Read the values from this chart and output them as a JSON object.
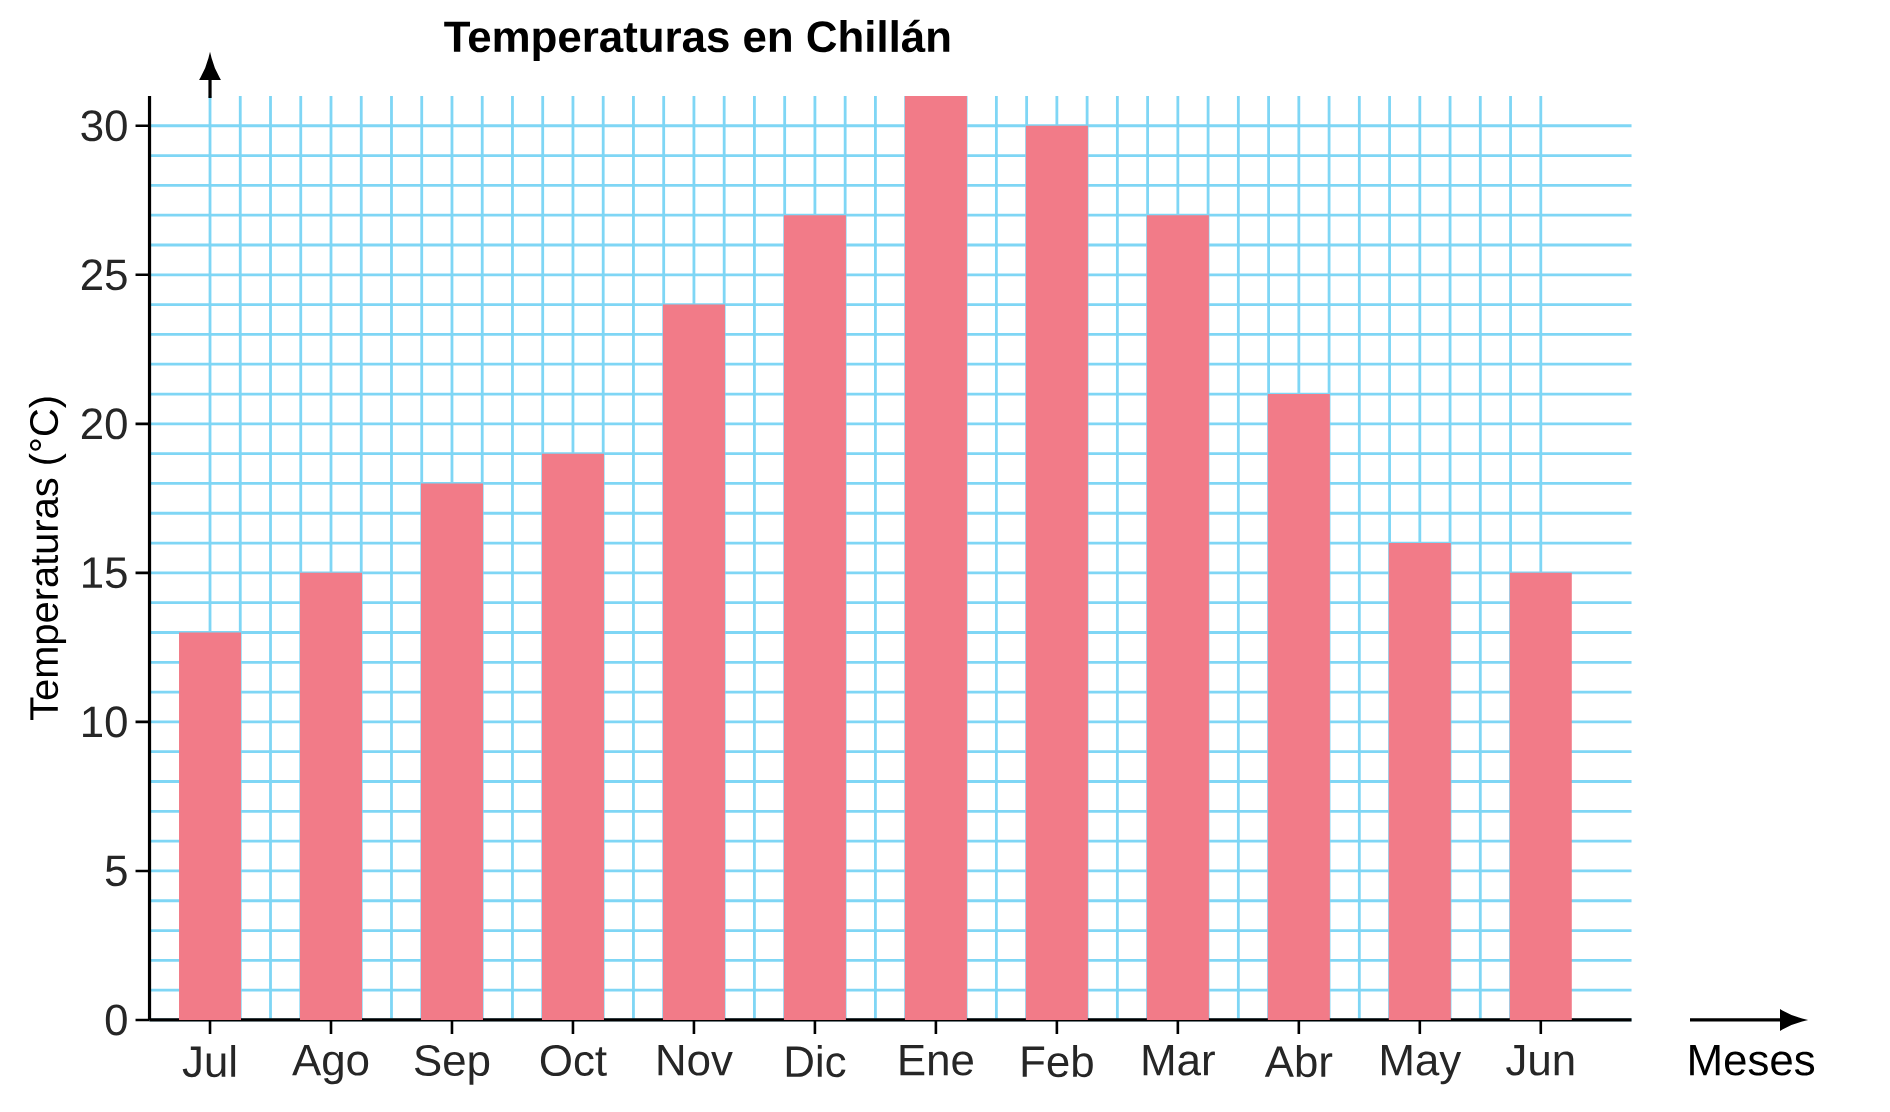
{
  "chart_data": {
    "type": "bar",
    "title": "Temperaturas en Chillán",
    "xlabel": "Meses",
    "ylabel": "Temperaturas (°C)",
    "categories": [
      "Jul",
      "Ago",
      "Sep",
      "Oct",
      "Nov",
      "Dic",
      "Ene",
      "Feb",
      "Mar",
      "Abr",
      "May",
      "Jun"
    ],
    "values": [
      13,
      15,
      18,
      19,
      24,
      27,
      31,
      30,
      27,
      21,
      16,
      15
    ],
    "color": "#f27b88",
    "ylim": [
      0,
      31
    ],
    "yticks": [
      0,
      5,
      10,
      15,
      20,
      25,
      30
    ],
    "grid": true
  }
}
